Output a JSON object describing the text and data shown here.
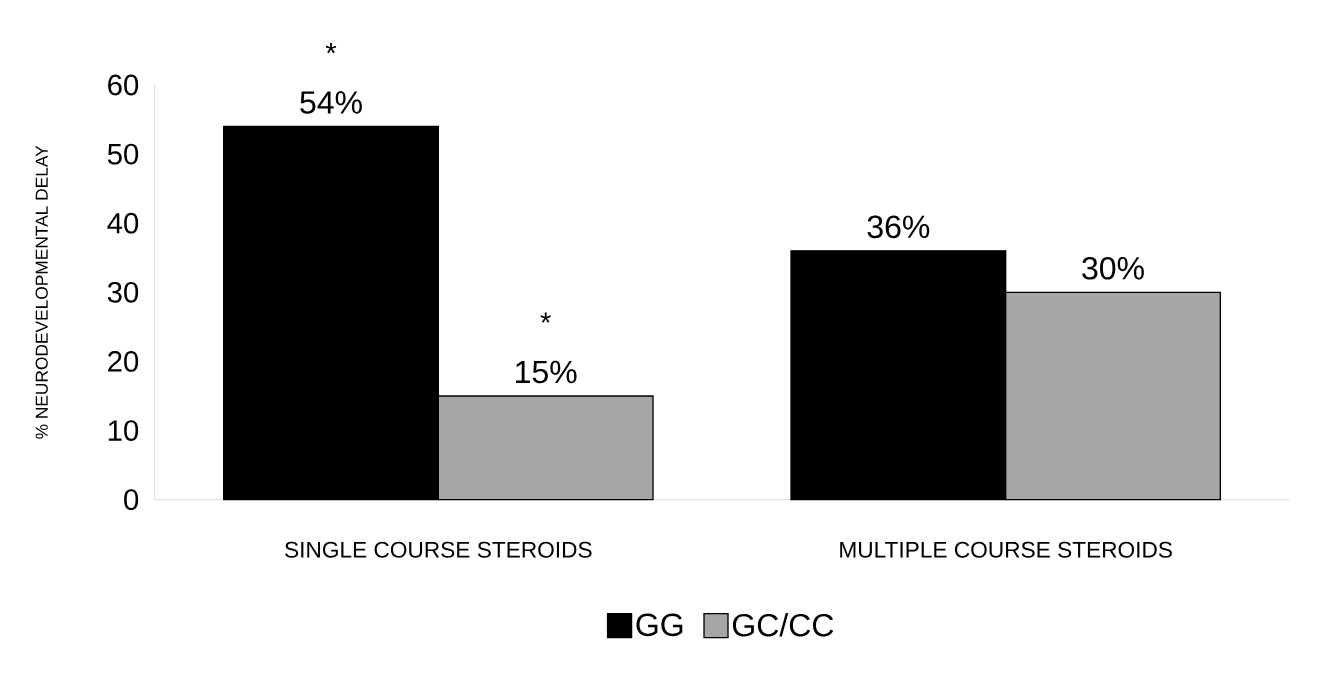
{
  "chart_data": {
    "type": "bar",
    "ylabel": "% NEURODEVELOPMENTAL DELAY",
    "categories": [
      "SINGLE COURSE STEROIDS",
      "MULTIPLE COURSE STEROIDS"
    ],
    "series": [
      {
        "name": "GG",
        "color": "#000000",
        "values": [
          54,
          36
        ],
        "value_labels": [
          "54%",
          "36%"
        ]
      },
      {
        "name": "GC/CC",
        "color": "#a6a6a6",
        "values": [
          15,
          30
        ],
        "value_labels": [
          "15%",
          "30%"
        ]
      }
    ],
    "ylim": [
      0,
      60
    ],
    "yticks": [
      0,
      10,
      20,
      30,
      40,
      50,
      60
    ],
    "grid": false,
    "legend": "bottom",
    "annotations": [
      "*",
      "*"
    ]
  }
}
